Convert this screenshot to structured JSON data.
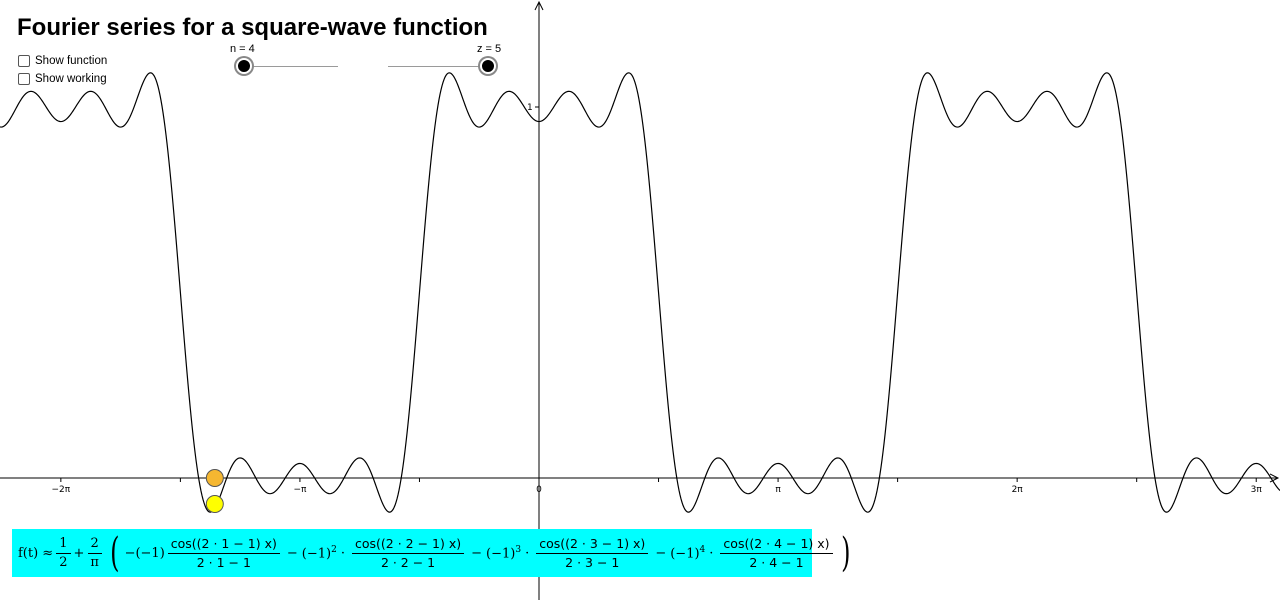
{
  "title": "Fourier series for a square-wave function",
  "checkboxes": [
    {
      "label": "Show function",
      "checked": false
    },
    {
      "label": "Show working",
      "checked": false
    }
  ],
  "sliders": {
    "n": {
      "label": "n = 4",
      "value": 4
    },
    "z": {
      "label": "z = 5",
      "value": 5
    }
  },
  "formula": {
    "lhs": "f(t) ≈",
    "half_num": "1",
    "half_den": "2",
    "plus": "+",
    "two_num": "2",
    "pi_den": "π",
    "t1_coef": "−(−1)",
    "t1_num": "cos((2 · 1 − 1) x)",
    "t1_den": "2 · 1 − 1",
    "t2_coef": "(−1)",
    "t2_exp": "2",
    "t2_num": "cos((2 · 2 − 1) x)",
    "t2_den": "2 · 2 − 1",
    "t3_coef": "(−1)",
    "t3_exp": "3",
    "t3_num": "cos((2 · 3 − 1) x)",
    "t3_den": "2 · 3 − 1",
    "t4_coef": "(−1)",
    "t4_exp": "4",
    "t4_num": "cos((2 · 4 − 1) x)",
    "t4_den": "2 · 4 − 1",
    "minus": "−",
    "dot": "·"
  },
  "colors": {
    "formula_bg": "#00ffff",
    "point_orange": "#f5b731",
    "point_yellow": "#ffff00",
    "curve": "#000000"
  },
  "chart_data": {
    "type": "line",
    "function": "square-wave Fourier partial sum, n = 4",
    "series": [
      {
        "values": "f(x) = 1/2 + (2/π) Σ_{k=1..4} (−1)^{k+1} cos((2k−1)x)/(2k−1)"
      }
    ],
    "xlim": [
      -7.12,
      9.56
    ],
    "ylim": [
      -0.33,
      1.33
    ],
    "x_ticks": [
      {
        "value": -6.2832,
        "label": "−2π"
      },
      {
        "value": -3.1416,
        "label": "−π"
      },
      {
        "value": 0,
        "label": "0"
      },
      {
        "value": 3.1416,
        "label": "π"
      },
      {
        "value": 6.2832,
        "label": "2π"
      },
      {
        "value": 9.4248,
        "label": "3π"
      }
    ],
    "y_ticks": [
      {
        "value": 1,
        "label": "1"
      }
    ],
    "points": [
      {
        "name": "orange point",
        "x": -4.26,
        "y": 0.0
      },
      {
        "name": "yellow point",
        "x": -4.26,
        "y": -0.07
      }
    ],
    "grid": false
  }
}
